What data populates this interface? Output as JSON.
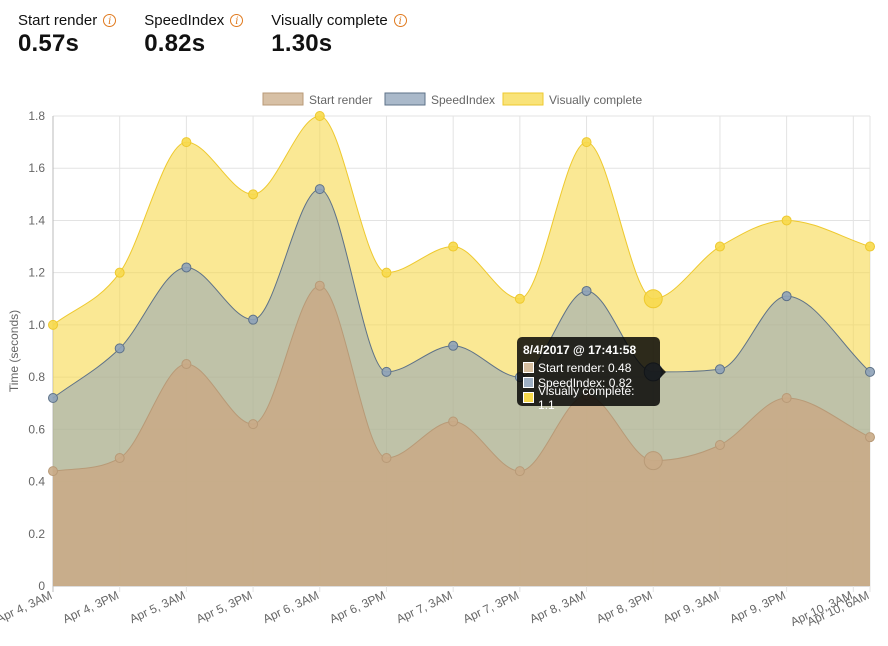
{
  "metrics": [
    {
      "label": "Start render",
      "value": "0.57s"
    },
    {
      "label": "SpeedIndex",
      "value": "0.82s"
    },
    {
      "label": "Visually complete",
      "value": "1.30s"
    }
  ],
  "tooltip": {
    "title": "8/4/2017 @ 17:41:58",
    "rows": [
      {
        "text": "Start render: 0.48",
        "color": "#d6bf9f"
      },
      {
        "text": "SpeedIndex: 0.82",
        "color": "#9fb0c4"
      },
      {
        "text": "Visually complete: 1.1",
        "color": "#f7d94c"
      }
    ]
  },
  "chart_data": {
    "type": "area",
    "categories": [
      "Apr 4, 3AM",
      "Apr 4, 3PM",
      "Apr 5, 3AM",
      "Apr 5, 3PM",
      "Apr 6, 3AM",
      "Apr 6, 3PM",
      "Apr 7, 3AM",
      "Apr 7, 3PM",
      "Apr 8, 3AM",
      "Apr 8, 3PM",
      "Apr 9, 3AM",
      "Apr 9, 3PM",
      "Apr 10, 3AM",
      "Apr 10, 6AM"
    ],
    "x": [
      0,
      1,
      2,
      3,
      4,
      5,
      6,
      7,
      8,
      9,
      10,
      11,
      12,
      12.25
    ],
    "series": [
      {
        "name": "Start render",
        "values": [
          0.44,
          0.49,
          0.85,
          0.62,
          1.15,
          0.49,
          0.63,
          0.44,
          0.73,
          0.48,
          0.54,
          0.72,
          0.57
        ],
        "x": [
          0,
          1,
          2,
          3,
          4,
          5,
          6,
          7,
          8,
          9,
          10,
          11,
          12.25
        ],
        "fill": "#c9ab87",
        "stroke": "#b89a77"
      },
      {
        "name": "SpeedIndex",
        "values": [
          0.72,
          0.91,
          1.22,
          1.02,
          1.52,
          0.82,
          0.92,
          0.8,
          1.13,
          0.82,
          0.83,
          1.11,
          0.82
        ],
        "x": [
          0,
          1,
          2,
          3,
          4,
          5,
          6,
          7,
          8,
          9,
          10,
          11,
          12.25
        ],
        "fill": "#8ea2b8",
        "stroke": "#5e7288"
      },
      {
        "name": "Visually complete",
        "values": [
          1.0,
          1.2,
          1.7,
          1.5,
          1.8,
          1.2,
          1.3,
          1.1,
          1.7,
          1.1,
          1.3,
          1.4,
          1.3
        ],
        "x": [
          0,
          1,
          2,
          3,
          4,
          5,
          6,
          7,
          8,
          9,
          10,
          11,
          12.25
        ],
        "fill": "#f7d94c",
        "stroke": "#eec92e"
      }
    ],
    "ylabel": "Time (seconds)",
    "ylim": [
      0,
      1.8
    ],
    "yticks": [
      "0",
      "0.2",
      "0.4",
      "0.6",
      "0.8",
      "1.0",
      "1.2",
      "1.4",
      "1.6",
      "1.8"
    ],
    "grid": true,
    "legend": "top",
    "highlight_index": 9
  }
}
